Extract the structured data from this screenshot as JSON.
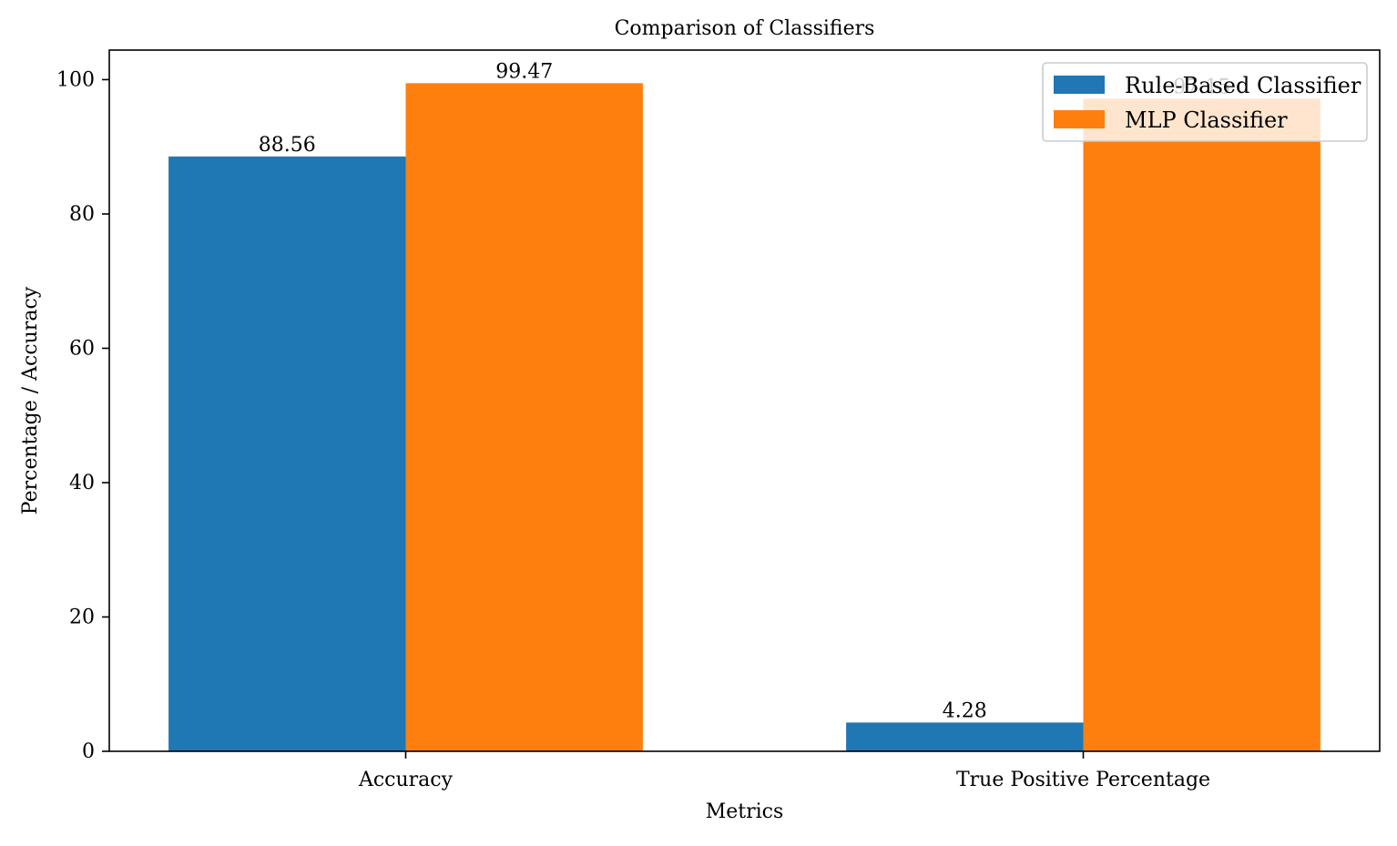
{
  "chart_data": {
    "type": "bar",
    "title": "Comparison of Classifiers",
    "xlabel": "Metrics",
    "ylabel": "Percentage / Accuracy",
    "categories": [
      "Accuracy",
      "True Positive Percentage"
    ],
    "series": [
      {
        "name": "Rule-Based Classifier",
        "color": "#1f77b4",
        "values": [
          88.56,
          4.28
        ],
        "labels": [
          "88.56",
          "4.28"
        ]
      },
      {
        "name": "MLP Classifier",
        "color": "#ff7f0e",
        "values": [
          99.47,
          97.15
        ],
        "labels": [
          "99.47",
          "97.15"
        ]
      }
    ],
    "ylim": [
      0,
      104.4
    ],
    "yticks": [
      0,
      20,
      40,
      60,
      80,
      100
    ],
    "ytick_labels": [
      "0",
      "20",
      "40",
      "60",
      "80",
      "100"
    ],
    "grid": false,
    "legend_position": "top-right"
  }
}
